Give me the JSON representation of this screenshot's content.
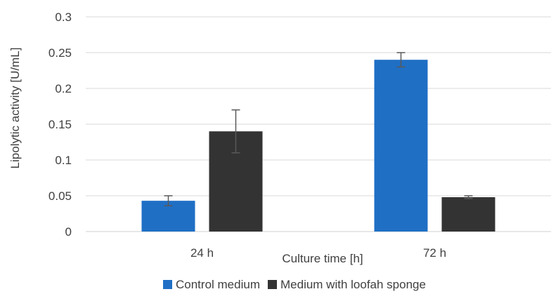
{
  "chart_data": {
    "type": "bar",
    "title": "",
    "xlabel": "Culture time [h]",
    "ylabel": "Lipolytic activity  [U/mL]",
    "ylim": [
      0,
      0.3
    ],
    "yticks": [
      "0",
      "0.05",
      "0.1",
      "0.15",
      "0.2",
      "0.25",
      "0.3"
    ],
    "categories": [
      "24 h",
      "72 h"
    ],
    "grid": true,
    "legend_position": "bottom",
    "series": [
      {
        "name": "Control medium",
        "color": "#1f6fc5",
        "values": [
          0.043,
          0.24
        ],
        "errors": [
          0.007,
          0.01
        ]
      },
      {
        "name": "Medium with loofah sponge",
        "color": "#333333",
        "values": [
          0.14,
          0.048
        ],
        "errors": [
          0.03,
          0.002
        ]
      }
    ]
  }
}
